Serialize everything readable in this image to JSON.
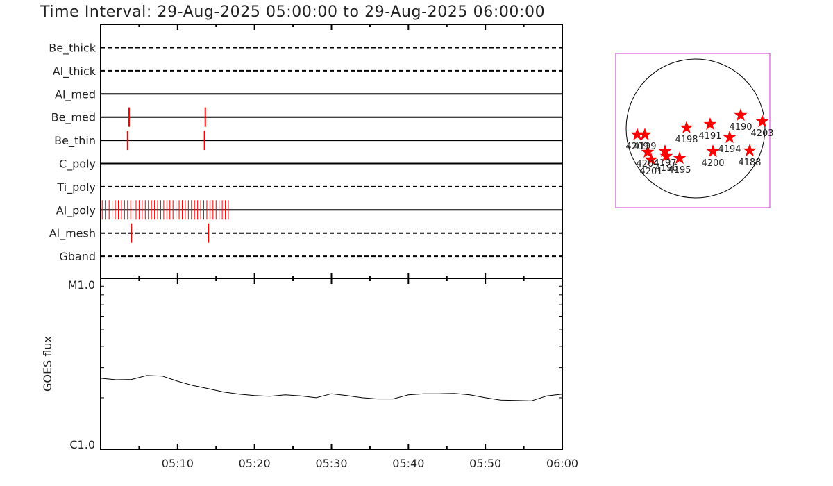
{
  "title": "Time Interval: 29-Aug-2025 05:00:00 to 29-Aug-2025 06:00:00",
  "colors": {
    "event": "#ff0000",
    "axis": "#000000",
    "box": "#cc33cc",
    "star": "#ff0000"
  },
  "chart_data": [
    {
      "type": "timeline",
      "x_range": [
        "05:00",
        "06:00"
      ],
      "channels": [
        {
          "name": "Be_thick",
          "style": "dashed",
          "events_min": []
        },
        {
          "name": "Al_thick",
          "style": "dashed",
          "events_min": []
        },
        {
          "name": "Al_med",
          "style": "solid",
          "events_min": []
        },
        {
          "name": "Be_med",
          "style": "solid",
          "events_min": [
            3.7,
            13.6
          ]
        },
        {
          "name": "Be_thin",
          "style": "solid",
          "events_min": [
            3.5,
            13.5
          ]
        },
        {
          "name": "C_poly",
          "style": "solid",
          "events_min": []
        },
        {
          "name": "Ti_poly",
          "style": "dashed",
          "events_min": []
        },
        {
          "name": "Al_poly",
          "style": "solid",
          "events_min": [
            0.2,
            0.6,
            1.1,
            1.5,
            1.9,
            2.3,
            2.7,
            3.1,
            3.5,
            3.9,
            4.2,
            4.6,
            5.0,
            5.4,
            5.8,
            6.2,
            6.6,
            7.0,
            7.4,
            7.8,
            8.2,
            8.6,
            9.0,
            9.4,
            9.8,
            10.2,
            10.6,
            11.0,
            11.4,
            11.8,
            12.2,
            12.6,
            13.0,
            13.4,
            13.8,
            14.2,
            14.6,
            15.0,
            15.4,
            15.8,
            16.2,
            16.6
          ]
        },
        {
          "name": "Al_mesh",
          "style": "dashed",
          "events_min": [
            4.0,
            14.0
          ]
        },
        {
          "name": "Gband",
          "style": "dashed",
          "events_min": []
        }
      ]
    },
    {
      "type": "line",
      "ylabel": "GOES flux",
      "y_scale": "log",
      "ylim_labels": [
        "C1.0",
        "M1.0"
      ],
      "ylim": [
        1e-06,
        1e-05
      ],
      "x_ticks": [
        "05:10",
        "05:20",
        "05:30",
        "05:40",
        "05:50",
        "06:00"
      ],
      "x_min": [
        0,
        2,
        4,
        6,
        8,
        10,
        12,
        14,
        16,
        18,
        20,
        22,
        24,
        26,
        28,
        30,
        32,
        34,
        36,
        38,
        40,
        42,
        44,
        46,
        48,
        50,
        52,
        54,
        56,
        58,
        60
      ],
      "y": [
        2.6e-06,
        2.55e-06,
        2.56e-06,
        2.7e-06,
        2.68e-06,
        2.5e-06,
        2.36e-06,
        2.26e-06,
        2.16e-06,
        2.1e-06,
        2.06e-06,
        2.04e-06,
        2.08e-06,
        2.05e-06,
        2e-06,
        2.11e-06,
        2.06e-06,
        2e-06,
        1.97e-06,
        1.97e-06,
        2.08e-06,
        2.11e-06,
        2.11e-06,
        2.12e-06,
        2.08e-06,
        2e-06,
        1.94e-06,
        1.93e-06,
        1.92e-06,
        2.05e-06,
        2.1e-06
      ]
    },
    {
      "type": "scatter",
      "marker": "star",
      "points": [
        {
          "label": "4188",
          "x": 0.78,
          "y": -0.32
        },
        {
          "label": "4190",
          "x": 0.65,
          "y": 0.19
        },
        {
          "label": "4191",
          "x": 0.21,
          "y": 0.06
        },
        {
          "label": "4194",
          "x": 0.49,
          "y": -0.13
        },
        {
          "label": "4195",
          "x": -0.23,
          "y": -0.43
        },
        {
          "label": "4196",
          "x": -0.42,
          "y": -0.4
        },
        {
          "label": "4197",
          "x": -0.44,
          "y": -0.33
        },
        {
          "label": "4198",
          "x": -0.13,
          "y": 0.01
        },
        {
          "label": "4199",
          "x": -0.73,
          "y": -0.09
        },
        {
          "label": "4200",
          "x": 0.25,
          "y": -0.33
        },
        {
          "label": "4201",
          "x": -0.64,
          "y": -0.45
        },
        {
          "label": "4203",
          "x": 0.96,
          "y": 0.1
        },
        {
          "label": "4204",
          "x": -0.69,
          "y": -0.34
        },
        {
          "label": "4209",
          "x": -0.84,
          "y": -0.09
        }
      ]
    }
  ]
}
